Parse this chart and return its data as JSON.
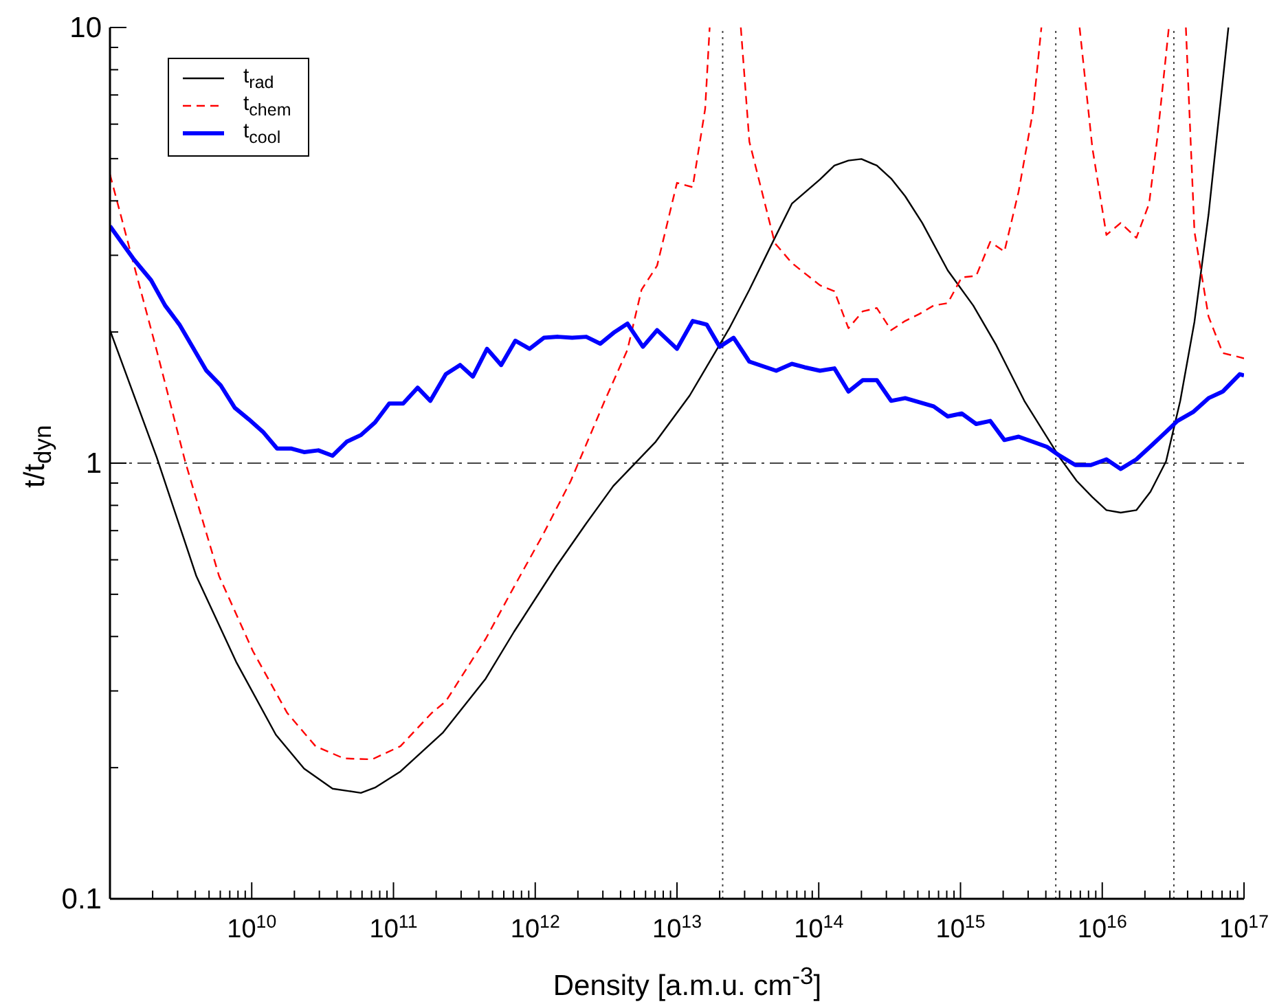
{
  "chart_data": {
    "type": "line",
    "xlabel": "Density [a.m.u. cm$^{-3}$]",
    "ylabel": "t/t$_{dyn}$",
    "log": "xy",
    "marker": "none",
    "legend": "top left",
    "xlim": [
      1000000000.0,
      1e+17
    ],
    "ylim": [
      0.1,
      10
    ],
    "xticks": [
      {
        "value": 2000000000.0,
        "label": null
      },
      {
        "value": 3000000000.0,
        "label": null
      },
      {
        "value": 4000000000.0,
        "label": null
      },
      {
        "value": 5000000000.0,
        "label": null
      },
      {
        "value": 6000000000.0,
        "label": null
      },
      {
        "value": 7000000000.0,
        "label": null
      },
      {
        "value": 8000000000.0,
        "label": null
      },
      {
        "value": 9000000000.0,
        "label": null
      },
      {
        "value": 10000000000.0,
        "label": "10$^{10}$"
      },
      {
        "value": 20000000000.0,
        "label": null
      },
      {
        "value": 30000000000.0,
        "label": null
      },
      {
        "value": 40000000000.0,
        "label": null
      },
      {
        "value": 50000000000.0,
        "label": null
      },
      {
        "value": 60000000000.0,
        "label": null
      },
      {
        "value": 70000000000.0,
        "label": null
      },
      {
        "value": 80000000000.0,
        "label": null
      },
      {
        "value": 90000000000.0,
        "label": null
      },
      {
        "value": 100000000000.0,
        "label": "10$^{11}$"
      },
      {
        "value": 200000000000.0,
        "label": null
      },
      {
        "value": 300000000000.0,
        "label": null
      },
      {
        "value": 400000000000.0,
        "label": null
      },
      {
        "value": 500000000000.0,
        "label": null
      },
      {
        "value": 600000000000.0,
        "label": null
      },
      {
        "value": 700000000000.0,
        "label": null
      },
      {
        "value": 800000000000.0,
        "label": null
      },
      {
        "value": 900000000000.0,
        "label": null
      },
      {
        "value": 1000000000000.0,
        "label": "10$^{12}$"
      },
      {
        "value": 2000000000000.0,
        "label": null
      },
      {
        "value": 3000000000000.0,
        "label": null
      },
      {
        "value": 4000000000000.0,
        "label": null
      },
      {
        "value": 5000000000000.0,
        "label": null
      },
      {
        "value": 6000000000000.0,
        "label": null
      },
      {
        "value": 7000000000000.0,
        "label": null
      },
      {
        "value": 8000000000000.0,
        "label": null
      },
      {
        "value": 9000000000000.0,
        "label": null
      },
      {
        "value": 10000000000000.0,
        "label": "10$^{13}$"
      },
      {
        "value": 20000000000000.0,
        "label": null
      },
      {
        "value": 30000000000000.0,
        "label": null
      },
      {
        "value": 40000000000000.0,
        "label": null
      },
      {
        "value": 50000000000000.0,
        "label": null
      },
      {
        "value": 60000000000000.0,
        "label": null
      },
      {
        "value": 70000000000000.0,
        "label": null
      },
      {
        "value": 80000000000000.0,
        "label": null
      },
      {
        "value": 90000000000000.0,
        "label": null
      },
      {
        "value": 100000000000000.0,
        "label": "10$^{14}$"
      },
      {
        "value": 200000000000000.0,
        "label": null
      },
      {
        "value": 300000000000000.0,
        "label": null
      },
      {
        "value": 400000000000000.0,
        "label": null
      },
      {
        "value": 500000000000000.0,
        "label": null
      },
      {
        "value": 600000000000000.0,
        "label": null
      },
      {
        "value": 700000000000000.0,
        "label": null
      },
      {
        "value": 800000000000000.0,
        "label": null
      },
      {
        "value": 900000000000000.0,
        "label": null
      },
      {
        "value": 1000000000000000.0,
        "label": "10$^{15}$"
      },
      {
        "value": 2000000000000000.0,
        "label": null
      },
      {
        "value": 3000000000000000.0,
        "label": null
      },
      {
        "value": 4000000000000000.0,
        "label": null
      },
      {
        "value": 5000000000000000.0,
        "label": null
      },
      {
        "value": 6000000000000000.0,
        "label": null
      },
      {
        "value": 7000000000000000.0,
        "label": null
      },
      {
        "value": 8000000000000000.0,
        "label": null
      },
      {
        "value": 9000000000000000.0,
        "label": null
      },
      {
        "value": 1e+16,
        "label": "10$^{16}$"
      },
      {
        "value": 2e+16,
        "label": null
      },
      {
        "value": 3e+16,
        "label": null
      },
      {
        "value": 4e+16,
        "label": null
      },
      {
        "value": 5e+16,
        "label": null
      },
      {
        "value": 6e+16,
        "label": null
      },
      {
        "value": 7e+16,
        "label": null
      },
      {
        "value": 8e+16,
        "label": null
      },
      {
        "value": 9e+16,
        "label": null
      },
      {
        "value": 1e+17,
        "label": "10$^{17}$"
      }
    ],
    "yticks": [
      0.1,
      {
        "value": 0.2,
        "label": null
      },
      {
        "value": 0.3,
        "label": null
      },
      {
        "value": 0.4,
        "label": null
      },
      {
        "value": 0.5,
        "label": null
      },
      {
        "value": 0.6,
        "label": null
      },
      {
        "value": 0.7,
        "label": null
      },
      {
        "value": 0.8,
        "label": null
      },
      {
        "value": 0.9,
        "label": null
      },
      1,
      {
        "value": 2,
        "label": null
      },
      {
        "value": 3,
        "label": null
      },
      {
        "value": 4,
        "label": null
      },
      {
        "value": 5,
        "label": null
      },
      {
        "value": 6,
        "label": null
      },
      {
        "value": 7,
        "label": null
      },
      {
        "value": 8,
        "label": null
      },
      {
        "value": 9,
        "label": null
      },
      10
    ],
    "ref_lines": [
      {
        "axis": "y",
        "value": 1,
        "color": "#444444",
        "line_style": "dashed"
      },
      {
        "axis": "x",
        "value": 21000000000000.0,
        "color": "#444444",
        "line_style": "dotted"
      },
      {
        "axis": "x",
        "value": 4700000000000000.0,
        "color": "#444444",
        "line_style": "dotted"
      },
      {
        "axis": "x",
        "value": 3.2e+16,
        "color": "#444444",
        "line_style": "dotted"
      }
    ],
    "series": [
      {
        "name": "t$_{rad}$",
        "color": "#000000",
        "line_style": "solid",
        "x": [
          1000000000.0,
          2140000000.0,
          4070000000.0,
          7760000000.0,
          14800000000.0,
          23400000000.0,
          37200000000.0,
          58900000000.0,
          74100000000.0,
          112000000000.0,
          224000000000.0,
          447000000000.0,
          708000000000.0,
          1410000000000.0,
          2240000000000.0,
          3550000000000.0,
          7080000000000.0,
          12300000000000.0,
          23400000000000.0,
          32400000000000.0,
          49000000000000.0,
          64600000000000.0,
          102000000000000.0,
          129000000000000.0,
          162000000000000.0,
          200000000000000.0,
          257000000000000.0,
          324000000000000.0,
          407000000000000.0,
          537000000000000.0,
          813000000000000.0,
          1230000000000000.0,
          1780000000000000.0,
          2820000000000000.0,
          5010000000000000.0,
          6610000000000000.0,
          8510000000000000.0,
          1.07e+16,
          1.35e+16,
          1.74e+16,
          2.19e+16,
          2.82e+16,
          3.55e+16,
          4.47e+16,
          5.62e+16,
          7.76e+16
        ],
        "values": [
          2.02,
          1.03,
          0.55,
          0.35,
          0.238,
          0.199,
          0.179,
          0.175,
          0.18,
          0.196,
          0.241,
          0.32,
          0.41,
          0.58,
          0.72,
          0.886,
          1.12,
          1.43,
          2.04,
          2.5,
          3.29,
          3.94,
          4.48,
          4.82,
          4.95,
          4.99,
          4.82,
          4.5,
          4.1,
          3.56,
          2.77,
          2.3,
          1.87,
          1.39,
          1.03,
          0.91,
          0.836,
          0.78,
          0.77,
          0.78,
          0.86,
          1.01,
          1.39,
          2.11,
          3.72,
          10
        ]
      },
      {
        "name": "t$_{chem}$",
        "color": "#ff0000",
        "line_style": "dashed",
        "x": [
          1000000000.0,
          1480000000.0,
          2140000000.0,
          3390000000.0,
          5890000000.0,
          10200000000.0,
          17800000000.0,
          28200000000.0,
          44700000000.0,
          70800000000.0,
          112000000000.0,
          186000000000.0,
          234000000000.0,
          372000000000.0,
          447000000000.0,
          708000000000.0,
          1120000000000.0,
          1780000000000.0,
          3090000000000.0,
          4470000000000.0,
          5620000000000.0,
          7240000000000.0,
          10000000000000.0,
          12900000000000.0,
          15800000000000.0,
          17000000000000.0,
          21900000000000.0,
          28200000000000.0,
          32400000000000.0,
          49000000000000.0,
          64600000000000.0,
          102000000000000.0,
          129000000000000.0,
          162000000000000.0,
          204000000000000.0,
          257000000000000.0,
          324000000000000.0,
          407000000000000.0,
          513000000000000.0,
          646000000000000.0,
          813000000000000.0,
          1020000000000000.0,
          1290000000000000.0,
          1620000000000000.0,
          2040000000000000.0,
          2570000000000000.0,
          3240000000000000.0,
          3720000000000000.0,
          5010000000000000.0,
          6920000000000000.0,
          8510000000000000.0,
          1.07e+16,
          1.35e+16,
          1.74e+16,
          2.14e+16,
          2.45e+16,
          2.95e+16,
          3.39e+16,
          3.89e+16,
          4.47e+16,
          5.62e+16,
          7.08e+16,
          9.33e+16,
          1e+17
        ],
        "values": [
          4.6,
          2.84,
          1.81,
          1.01,
          0.55,
          0.37,
          0.267,
          0.224,
          0.21,
          0.209,
          0.224,
          0.267,
          0.284,
          0.36,
          0.395,
          0.52,
          0.68,
          0.91,
          1.39,
          1.82,
          2.5,
          2.84,
          4.4,
          4.3,
          6.5,
          10,
          null,
          10,
          5.47,
          3.2,
          2.88,
          2.56,
          2.48,
          2.04,
          2.23,
          2.27,
          2.02,
          2.12,
          2.2,
          2.3,
          2.33,
          2.67,
          2.69,
          3.22,
          3.06,
          4.2,
          6.4,
          10,
          null,
          10,
          5.3,
          3.34,
          3.56,
          3.29,
          3.94,
          5.6,
          10,
          null,
          10,
          3.4,
          2.17,
          1.79,
          1.75,
          1.74
        ]
      },
      {
        "name": "t$_{cool}$",
        "color": "#0000ff",
        "line_style": "solid",
        "x": [
          1000000000.0,
          1480000000.0,
          1950000000.0,
          2450000000.0,
          3090000000.0,
          3890000000.0,
          4790000000.0,
          6030000000.0,
          7590000000.0,
          9550000000.0,
          12000000000.0,
          15100000000.0,
          19100000000.0,
          23400000000.0,
          29500000000.0,
          37200000000.0,
          46800000000.0,
          58900000000.0,
          74100000000.0,
          93300000000.0,
          117000000000.0,
          148000000000.0,
          182000000000.0,
          234000000000.0,
          295000000000.0,
          363000000000.0,
          457000000000.0,
          575000000000.0,
          724000000000.0,
          912000000000.0,
          1150000000000.0,
          1450000000000.0,
          1820000000000.0,
          2290000000000.0,
          2880000000000.0,
          3630000000000.0,
          4470000000000.0,
          5750000000000.0,
          7240000000000.0,
          10000000000000.0,
          12900000000000.0,
          16200000000000.0,
          20000000000000.0,
          25100000000000.0,
          32400000000000.0,
          50100000000000.0,
          64600000000000.0,
          79400000000000.0,
          102000000000000.0,
          129000000000000.0,
          162000000000000.0,
          204000000000000.0,
          257000000000000.0,
          324000000000000.0,
          407000000000000.0,
          646000000000000.0,
          813000000000000.0,
          1020000000000000.0,
          1290000000000000.0,
          1620000000000000.0,
          2040000000000000.0,
          2570000000000000.0,
          4070000000000000.0,
          5010000000000000.0,
          6460000000000000.0,
          8320000000000000.0,
          1.07e+16,
          1.35e+16,
          1.74e+16,
          2.24e+16,
          2.82e+16,
          3.39e+16,
          4.37e+16,
          5.62e+16,
          7.08e+16,
          9.33e+16,
          1e+17
        ],
        "values": [
          3.5,
          2.93,
          2.63,
          2.3,
          2.08,
          1.83,
          1.63,
          1.51,
          1.34,
          1.26,
          1.18,
          1.08,
          1.08,
          1.06,
          1.07,
          1.04,
          1.12,
          1.16,
          1.24,
          1.37,
          1.37,
          1.49,
          1.39,
          1.6,
          1.68,
          1.58,
          1.83,
          1.68,
          1.91,
          1.83,
          1.94,
          1.95,
          1.94,
          1.95,
          1.88,
          2.0,
          2.09,
          1.85,
          2.02,
          1.83,
          2.12,
          2.08,
          1.85,
          1.94,
          1.71,
          1.63,
          1.69,
          1.66,
          1.63,
          1.65,
          1.46,
          1.55,
          1.55,
          1.39,
          1.41,
          1.35,
          1.28,
          1.3,
          1.23,
          1.25,
          1.13,
          1.15,
          1.09,
          1.04,
          0.99,
          0.99,
          1.02,
          0.97,
          1.02,
          1.1,
          1.18,
          1.25,
          1.31,
          1.41,
          1.46,
          1.6,
          1.59
        ]
      }
    ]
  }
}
